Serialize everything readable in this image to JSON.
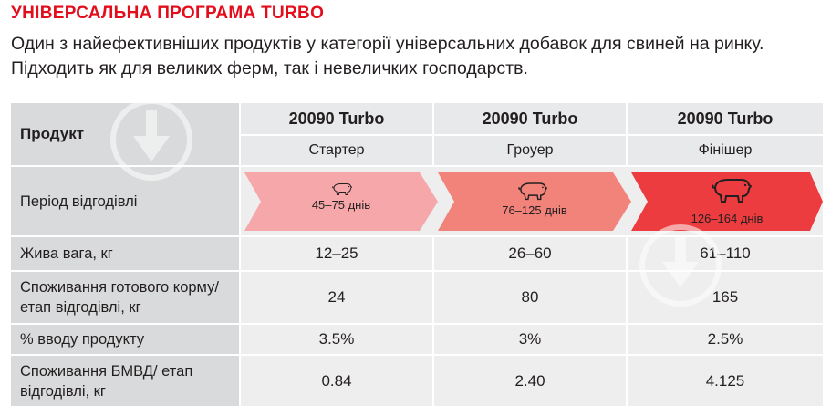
{
  "header": {
    "title": "УНІВЕРСАЛЬНА ПРОГРАМА TURBO",
    "subtitle": "Один з найефективніших продуктів у категорії універсальних добавок для свиней на ринку. Підходить як для великих ферм, так і невеличких господарств."
  },
  "table": {
    "product_label": "Продукт",
    "columns": [
      {
        "name": "20090 Turbo",
        "phase": "Стартер",
        "period": "45–75 днів",
        "color": "#f5a7aa",
        "icon": "pig-small-icon"
      },
      {
        "name": "20090 Turbo",
        "phase": "Гроуер",
        "period": "76–125 днів",
        "color": "#f2837a",
        "icon": "pig-medium-icon"
      },
      {
        "name": "20090 Turbo",
        "phase": "Фінішер",
        "period": "126–164 днів",
        "color": "#ec3c3f",
        "icon": "pig-large-icon"
      }
    ],
    "period_label": "Період відгодівлі",
    "rows": [
      {
        "label": "Жива вага, кг",
        "values": [
          "12–25",
          "26–60",
          "61–110"
        ]
      },
      {
        "label": "Споживання готового корму/ етап відгодівлі, кг",
        "values": [
          "24",
          "80",
          "165"
        ]
      },
      {
        "label": "% вводу продукту",
        "values": [
          "3.5%",
          "3%",
          "2.5%"
        ]
      },
      {
        "label": "Споживання БМВД/ етап відгодівлі, кг",
        "values": [
          "0.84",
          "2.40",
          "4.125"
        ]
      }
    ]
  },
  "colors": {
    "accent": "#e30d1c",
    "label_bg": "#d9dadb",
    "row_bg": "#eeeeef"
  }
}
